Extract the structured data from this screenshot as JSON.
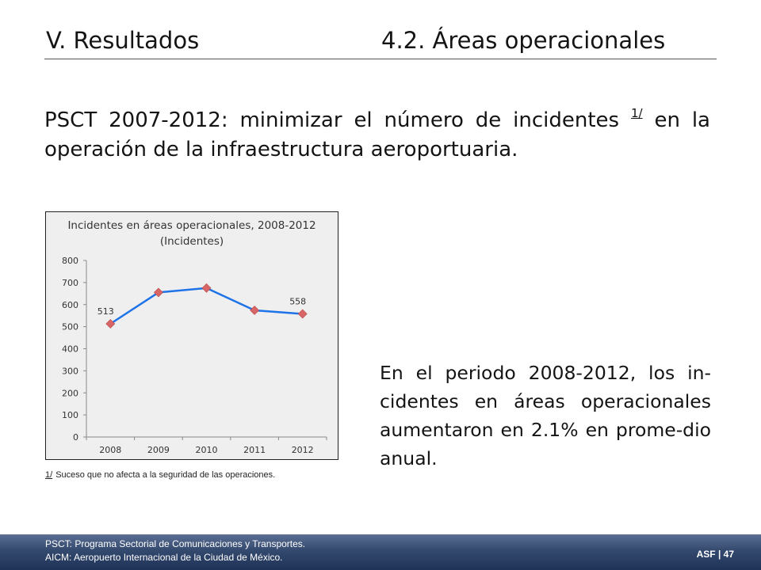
{
  "header": {
    "section": "V. Resultados",
    "subsection": "4.2. Áreas operacionales"
  },
  "headline": {
    "text_before": "PSCT 2007-2012: minimizar el número de incidentes ",
    "footnote_ref": "1/",
    "text_after": " en la operación de la infraestructura aeroportuaria."
  },
  "chart_data": {
    "type": "line",
    "title": "Incidentes en áreas operacionales, 2008-2012",
    "subtitle": "(Incidentes)",
    "categories": [
      "2008",
      "2009",
      "2010",
      "2011",
      "2012"
    ],
    "series": [
      {
        "values": [
          513,
          655,
          675,
          574,
          558
        ],
        "color": "#1e73e8",
        "marker_color": "#d96666"
      }
    ],
    "data_labels": [
      {
        "index": 0,
        "text": "513"
      },
      {
        "index": 4,
        "text": "558"
      }
    ],
    "ylim": [
      0,
      800
    ],
    "yticks": [
      "0",
      "100",
      "200",
      "300",
      "400",
      "500",
      "600",
      "700",
      "800"
    ],
    "xlabel": "",
    "ylabel": "",
    "grid": false,
    "legend": "none"
  },
  "footnote": {
    "mark": "1/",
    "text": "Suceso que no afecta a la seguridad de las operaciones."
  },
  "paragraph": "En el periodo 2008-2012, los in-cidentes en áreas operacionales aumentaron en 2.1% en prome-dio anual.",
  "footer": {
    "note1": "PSCT: Programa Sectorial de Comunicaciones  y Transportes.",
    "note2": "AICM: Aeropuerto Internacional de la Ciudad de México.",
    "page": "ASF | 47"
  }
}
